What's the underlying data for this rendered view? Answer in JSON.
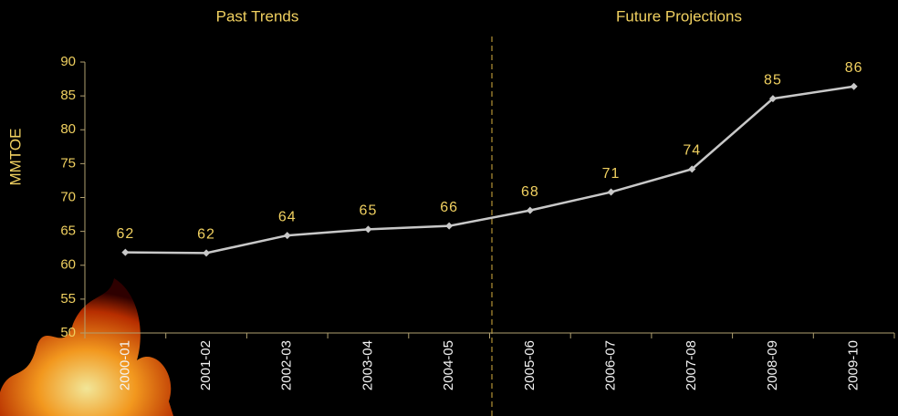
{
  "chart_data": {
    "type": "line",
    "annotations": [
      "Past Trends",
      "Future Projections"
    ],
    "y_label": "MMTOE",
    "categories": [
      "2000-01",
      "2001-02",
      "2002-03",
      "2003-04",
      "2004-05",
      "2005-06",
      "2006-07",
      "2007-08",
      "2008-09",
      "2009-10"
    ],
    "values": [
      61.9,
      61.8,
      64.4,
      65.3,
      65.8,
      68.1,
      70.8,
      74.2,
      84.6,
      86.4
    ],
    "value_labels": [
      "62",
      "62",
      "64",
      "65",
      "66",
      "68",
      "71",
      "74",
      "85",
      "86"
    ],
    "color": "#c8c8c8",
    "ylim": [
      50,
      90
    ],
    "yticks": [
      50,
      55,
      60,
      65,
      70,
      75,
      80,
      85,
      90
    ]
  }
}
